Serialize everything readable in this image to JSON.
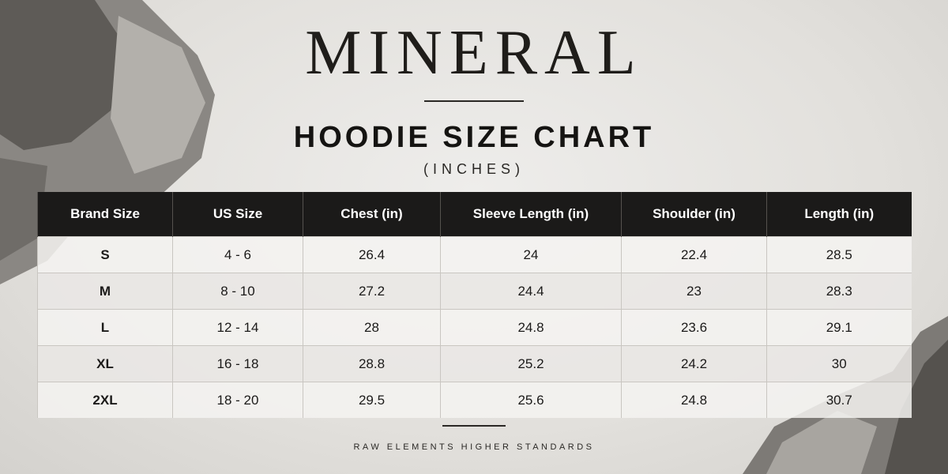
{
  "header": {
    "brand": "MINERAL",
    "title": "HOODIE SIZE CHART",
    "subtitle": "(INCHES)"
  },
  "table": {
    "columns": [
      "Brand Size",
      "US Size",
      "Chest (in)",
      "Sleeve Length (in)",
      "Shoulder (in)",
      "Length (in)"
    ],
    "rows": [
      [
        "S",
        "4 - 6",
        "26.4",
        "24",
        "22.4",
        "28.5"
      ],
      [
        "M",
        "8 - 10",
        "27.2",
        "24.4",
        "23",
        "28.3"
      ],
      [
        "L",
        "12 - 14",
        "28",
        "24.8",
        "23.6",
        "29.1"
      ],
      [
        "XL",
        "16 - 18",
        "28.8",
        "25.2",
        "24.2",
        "30"
      ],
      [
        "2XL",
        "18 - 20",
        "29.5",
        "25.6",
        "24.8",
        "30.7"
      ]
    ]
  },
  "footer": {
    "tagline": "RAW ELEMENTS HIGHER STANDARDS"
  }
}
